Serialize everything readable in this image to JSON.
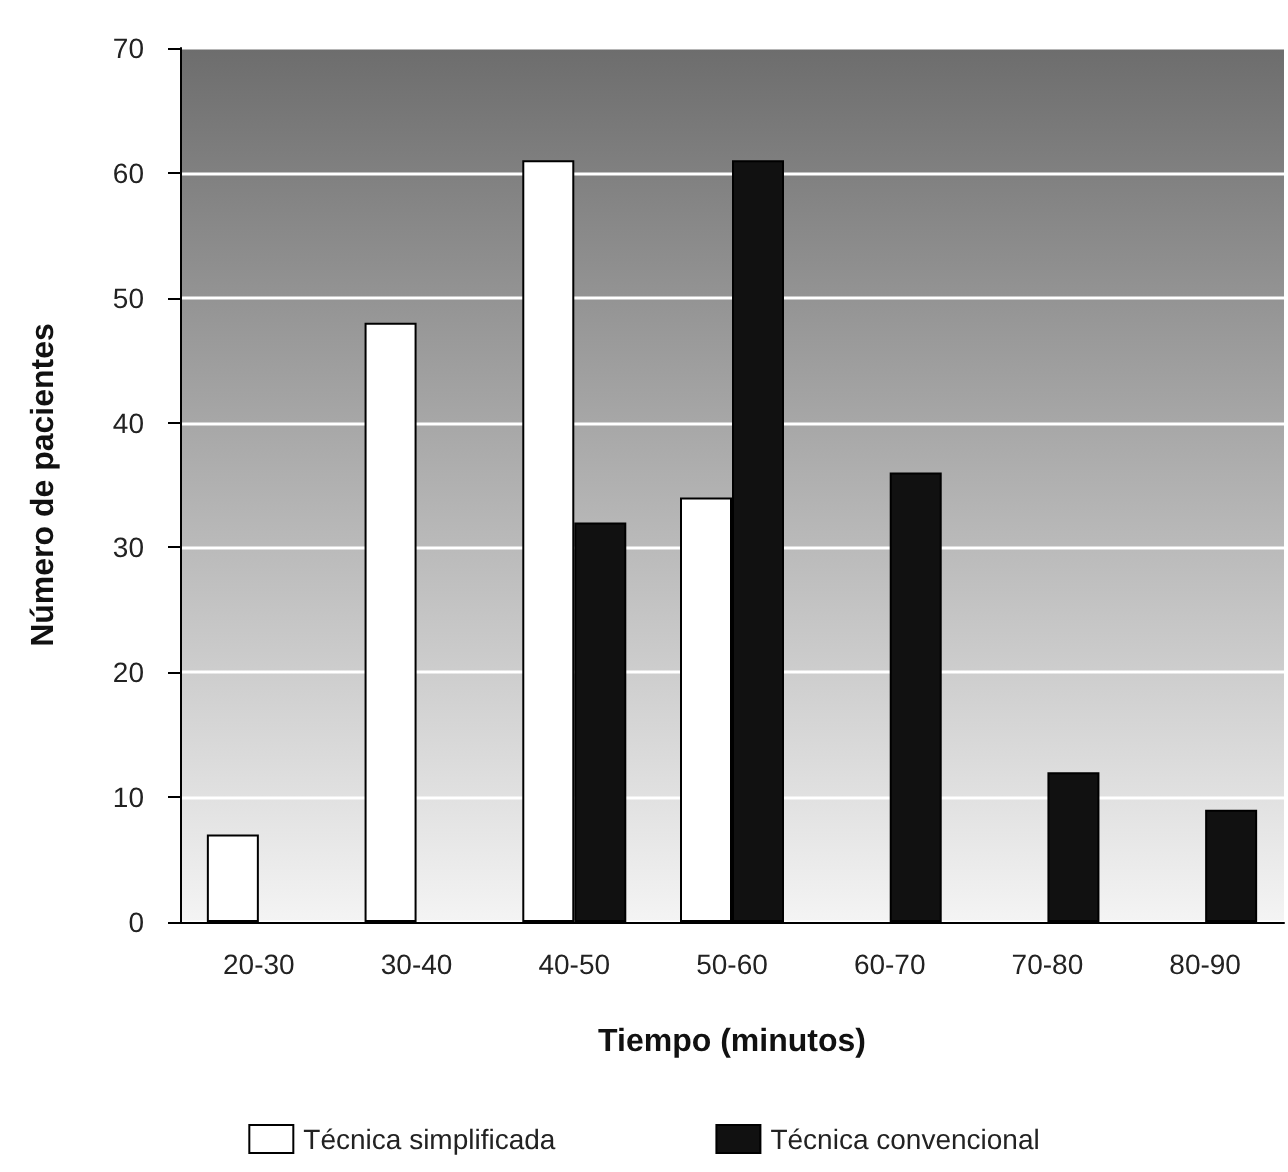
{
  "chart_data": {
    "type": "bar",
    "xlabel": "Tiempo (minutos)",
    "ylabel": "Número de pacientes",
    "categories": [
      "20-30",
      "30-40",
      "40-50",
      "50-60",
      "60-70",
      "70-80",
      "80-90"
    ],
    "series": [
      {
        "name": "Técnica simplificada",
        "color": "#ffffff",
        "values": [
          7,
          48,
          61,
          34,
          0,
          0,
          0
        ]
      },
      {
        "name": "Técnica convencional",
        "color": "#111111",
        "values": [
          0,
          0,
          32,
          61,
          36,
          12,
          9
        ]
      }
    ],
    "ylim": [
      0,
      70
    ],
    "yticks": [
      0,
      10,
      20,
      30,
      40,
      50,
      60,
      70
    ],
    "grid": "y",
    "legend": "bottom"
  }
}
